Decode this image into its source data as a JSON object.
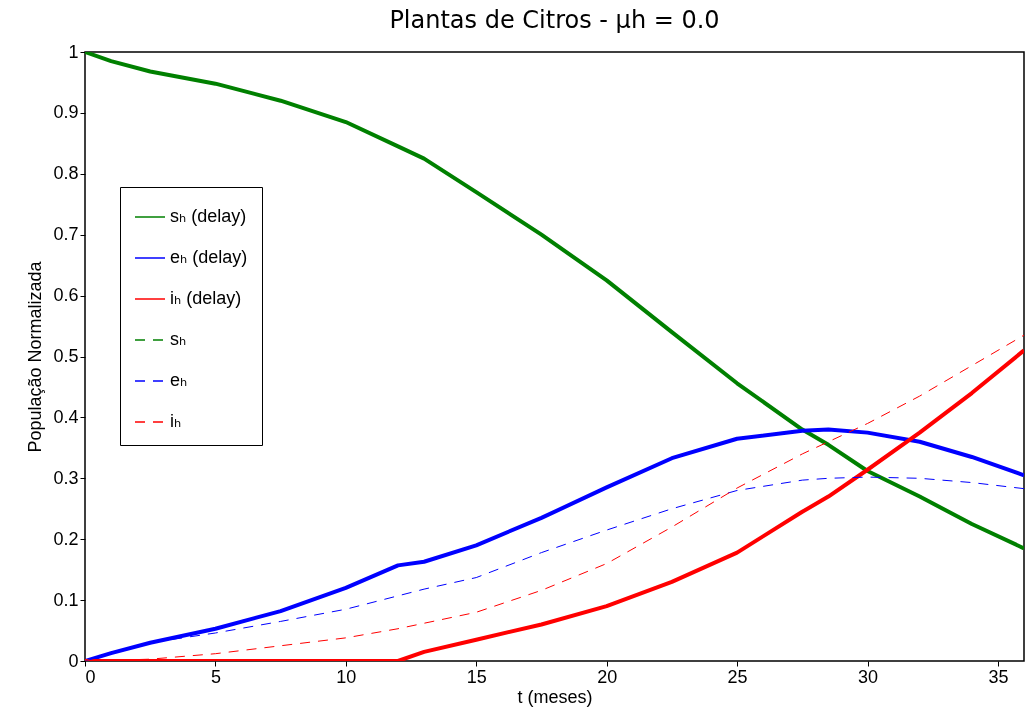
{
  "chart_data": {
    "type": "line",
    "title": "Plantas de Citros  - μh = 0.0",
    "xlabel": "t (meses)",
    "ylabel": "População Normalizada",
    "x": [
      0,
      1,
      2.5,
      5,
      7.5,
      10,
      12,
      13,
      15,
      17.5,
      20,
      22.5,
      25,
      27.5,
      28.5,
      30,
      32,
      34,
      36
    ],
    "series": [
      {
        "name": "sₕ (delay)",
        "color": "#008000",
        "line_style": "solid",
        "values": [
          1,
          0.985,
          0.968,
          0.948,
          0.92,
          0.885,
          0.845,
          0.825,
          0.77,
          0.7,
          0.625,
          0.54,
          0.456,
          0.38,
          0.355,
          0.312,
          0.27,
          0.225,
          0.185
        ]
      },
      {
        "name": "eₕ (delay)",
        "color": "#0000ff",
        "line_style": "solid",
        "values": [
          0,
          0.013,
          0.03,
          0.053,
          0.082,
          0.12,
          0.157,
          0.163,
          0.19,
          0.235,
          0.285,
          0.333,
          0.365,
          0.378,
          0.38,
          0.375,
          0.36,
          0.335,
          0.305
        ]
      },
      {
        "name": "iₕ (delay)",
        "color": "#ff0000",
        "line_style": "solid",
        "values": [
          0,
          0,
          0,
          0,
          0,
          0,
          0,
          0.015,
          0.035,
          0.06,
          0.09,
          0.13,
          0.178,
          0.245,
          0.27,
          0.314,
          0.375,
          0.44,
          0.51
        ]
      },
      {
        "name": "sₕ",
        "color": "#008000",
        "line_style": "dashed",
        "values": [
          null,
          null,
          null,
          null,
          null,
          null,
          null,
          null,
          null,
          null,
          null,
          null,
          null,
          null,
          null,
          null,
          null,
          null,
          null
        ]
      },
      {
        "name": "eₕ",
        "color": "#0000ff",
        "line_style": "dashed",
        "values": [
          0,
          0.012,
          0.03,
          0.046,
          0.065,
          0.085,
          0.107,
          0.118,
          0.137,
          0.178,
          0.215,
          0.25,
          0.28,
          0.297,
          0.3,
          0.302,
          0.3,
          0.293,
          0.283
        ]
      },
      {
        "name": "iₕ",
        "color": "#ff0000",
        "line_style": "dashed",
        "values": [
          0,
          0.001,
          0.003,
          0.012,
          0.025,
          0.038,
          0.053,
          0.062,
          0.08,
          0.116,
          0.16,
          0.22,
          0.284,
          0.34,
          0.36,
          0.39,
          0.435,
          0.485,
          0.535
        ]
      }
    ],
    "xlim": [
      0,
      36
    ],
    "xticks": [
      0,
      5,
      10,
      15,
      20,
      25,
      30,
      35
    ],
    "ylim": [
      0,
      1
    ],
    "yticks": [
      0,
      0.1,
      0.2,
      0.3,
      0.4,
      0.5,
      0.6,
      0.7,
      0.8,
      0.9,
      1
    ],
    "grid": false,
    "legend": "top left"
  }
}
